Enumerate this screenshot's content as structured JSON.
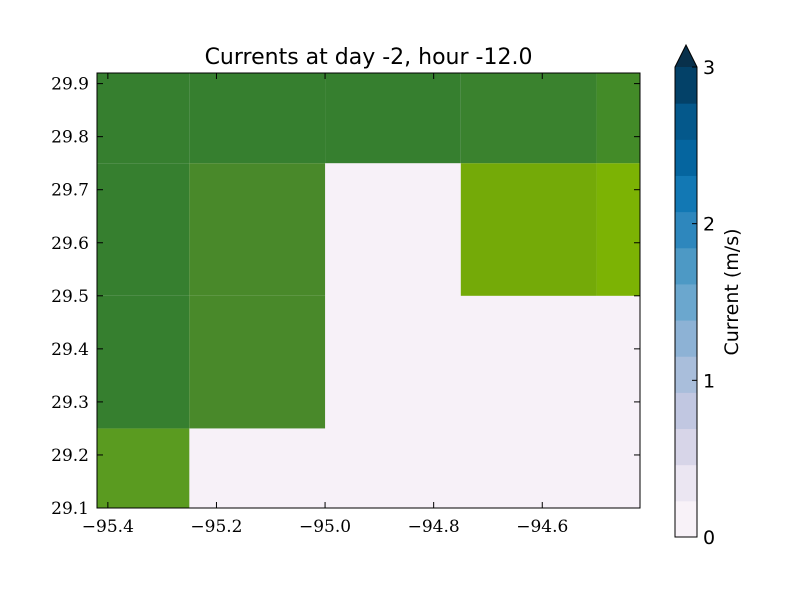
{
  "chart_data": {
    "type": "heatmap",
    "title": "Currents at day -2, hour -12.0",
    "xlabel": "",
    "ylabel": "",
    "xlim": [
      -95.42,
      -94.42
    ],
    "ylim": [
      29.1,
      29.92
    ],
    "xticks": [
      -95.4,
      -95.2,
      -95.0,
      -94.8,
      -94.6
    ],
    "xtick_labels": [
      "−95.4",
      "−95.2",
      "−95.0",
      "−94.8",
      "−94.6"
    ],
    "yticks": [
      29.1,
      29.2,
      29.3,
      29.4,
      29.5,
      29.6,
      29.7,
      29.8,
      29.9
    ],
    "ytick_labels": [
      "29.1",
      "29.2",
      "29.3",
      "29.4",
      "29.5",
      "29.6",
      "29.7",
      "29.8",
      "29.9"
    ],
    "x_edges": [
      -95.42,
      -95.25,
      -95.0,
      -94.75,
      -94.5,
      -94.42
    ],
    "y_edges": [
      29.1,
      29.25,
      29.5,
      29.75,
      29.92
    ],
    "cells": [
      [
        {
          "color": "#5a9b20"
        },
        null,
        null,
        null,
        null
      ],
      [
        {
          "color": "#367f2f"
        },
        {
          "color": "#49892a"
        },
        null,
        null,
        null
      ],
      [
        {
          "color": "#367f2f"
        },
        {
          "color": "#49892a"
        },
        null,
        {
          "color": "#74aa08"
        },
        {
          "color": "#7cb304"
        }
      ],
      [
        {
          "color": "#367f2f"
        },
        {
          "color": "#367f2f"
        },
        {
          "color": "#367f2f"
        },
        {
          "color": "#3a822e"
        },
        {
          "color": "#438b28"
        }
      ]
    ],
    "background_color": "#f7f1f8",
    "colorbar": {
      "label": "Current (m/s)",
      "min": 0,
      "max": 3,
      "ticks": [
        0,
        1,
        2,
        3
      ],
      "tick_labels": [
        "0",
        "1",
        "2",
        "3"
      ],
      "extend": "max",
      "colors": [
        "#f8f2f8",
        "#ebe6f2",
        "#d7d5e8",
        "#c1c7e1",
        "#a9bedb",
        "#8db2d5",
        "#6ba7ce",
        "#4d99c5",
        "#2e87bd",
        "#1278b4",
        "#05659f",
        "#04588b",
        "#034168"
      ]
    }
  }
}
